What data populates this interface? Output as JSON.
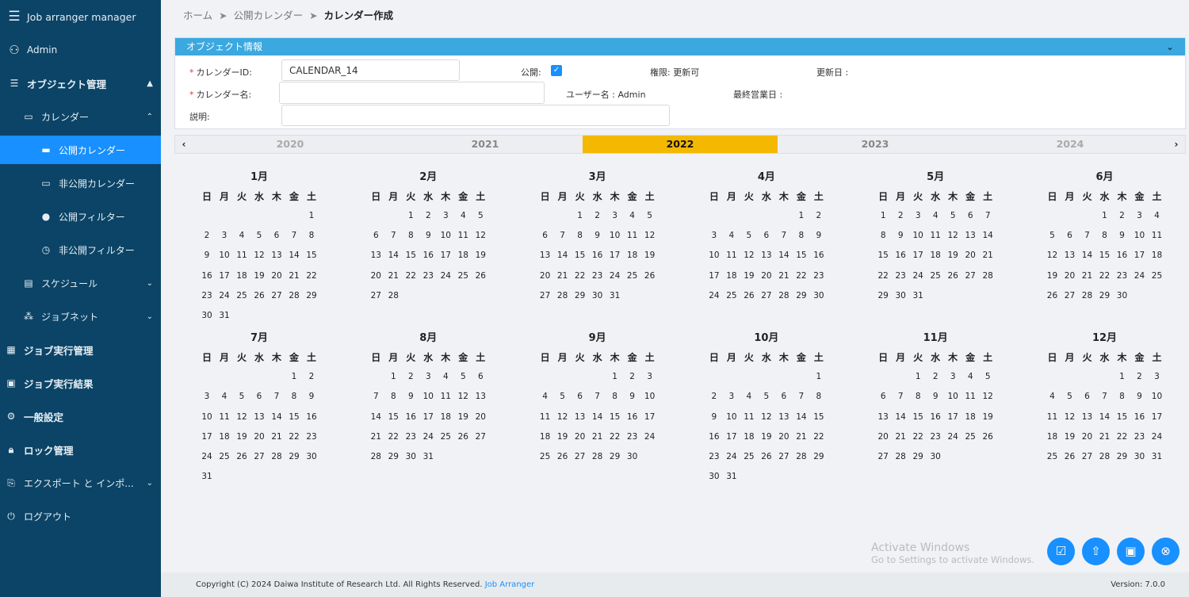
{
  "sidebar": {
    "app_title": "Job arranger manager",
    "user": "Admin",
    "items": [
      {
        "label": "オブジェクト管理",
        "icon": "list-icon"
      },
      {
        "label": "カレンダー",
        "icon": "calendar-icon"
      },
      {
        "label": "公開カレンダー",
        "icon": "calendar-filled-icon",
        "active": true
      },
      {
        "label": "非公開カレンダー",
        "icon": "calendar-icon"
      },
      {
        "label": "公開フィルター",
        "icon": "clock-filled-icon"
      },
      {
        "label": "非公開フィルター",
        "icon": "clock-icon"
      },
      {
        "label": "スケジュール",
        "icon": "schedule-icon"
      },
      {
        "label": "ジョブネット",
        "icon": "jobnet-icon"
      },
      {
        "label": "ジョブ実行管理",
        "icon": "table-icon"
      },
      {
        "label": "ジョブ実行結果",
        "icon": "result-icon"
      },
      {
        "label": "一般設定",
        "icon": "gear-icon"
      },
      {
        "label": "ロック管理",
        "icon": "lock-icon"
      },
      {
        "label": "エクスポート と インポ...",
        "icon": "export-icon"
      },
      {
        "label": "ログアウト",
        "icon": "logout-icon"
      }
    ]
  },
  "breadcrumb": [
    "ホーム",
    "公開カレンダー",
    "カレンダー作成"
  ],
  "panel": {
    "title": "オブジェクト情報",
    "calendar_id_label": "カレンダーID:",
    "calendar_id_value": "CALENDAR_14",
    "calendar_name_label": "カレンダー名:",
    "calendar_name_value": "",
    "description_label": "説明:",
    "description_value": "",
    "public_label": "公開:",
    "public_checked": true,
    "permission": "権限: 更新可",
    "username": "ユーザー名 : Admin",
    "updated_label": "更新日 :",
    "last_business_day_label": "最終営業日 :"
  },
  "years": {
    "list": [
      "2020",
      "2021",
      "2022",
      "2023",
      "2024"
    ],
    "selected": "2022",
    "prev": "‹",
    "next": "›"
  },
  "calendar": {
    "year": 2022,
    "weekdays": [
      "日",
      "月",
      "火",
      "水",
      "木",
      "金",
      "土"
    ],
    "months": [
      {
        "label": "1月",
        "first_weekday": 6,
        "days": 31
      },
      {
        "label": "2月",
        "first_weekday": 2,
        "days": 28
      },
      {
        "label": "3月",
        "first_weekday": 2,
        "days": 31
      },
      {
        "label": "4月",
        "first_weekday": 5,
        "days": 30
      },
      {
        "label": "5月",
        "first_weekday": 0,
        "days": 31
      },
      {
        "label": "6月",
        "first_weekday": 3,
        "days": 30
      },
      {
        "label": "7月",
        "first_weekday": 5,
        "days": 31
      },
      {
        "label": "8月",
        "first_weekday": 1,
        "days": 31
      },
      {
        "label": "9月",
        "first_weekday": 4,
        "days": 30
      },
      {
        "label": "10月",
        "first_weekday": 6,
        "days": 31
      },
      {
        "label": "11月",
        "first_weekday": 2,
        "days": 30
      },
      {
        "label": "12月",
        "first_weekday": 4,
        "days": 31
      }
    ]
  },
  "watermark": {
    "line1": "Activate Windows",
    "line2": "Go to Settings to activate Windows."
  },
  "footer": {
    "copyright": "Copyright (C) 2024 Daiwa Institute of Research Ltd. All Rights Reserved.",
    "link": "Job Arranger",
    "version": "Version: 7.0.0"
  },
  "colors": {
    "sidebar": "#0b4466",
    "accent": "#1890ff",
    "selected_year": "#f4b800",
    "panel_header": "#3ba8e0"
  }
}
